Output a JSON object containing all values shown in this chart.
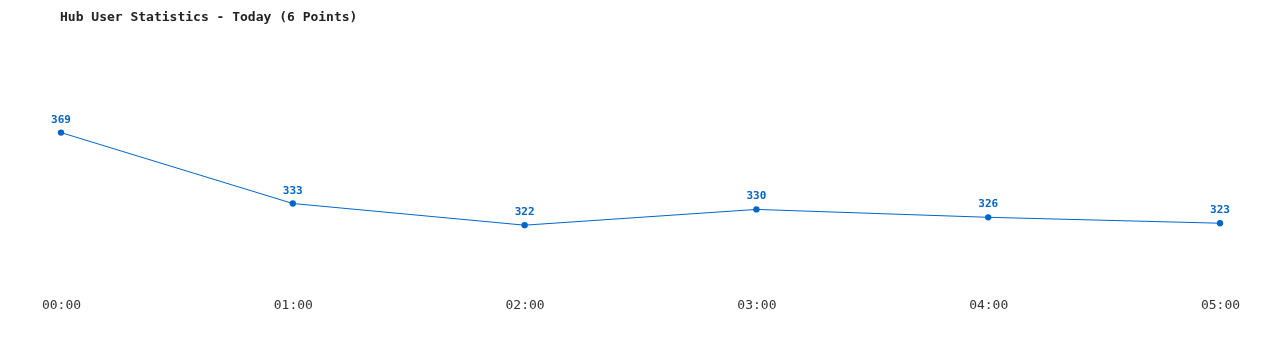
{
  "chart_data": {
    "type": "line",
    "title": "Hub User Statistics - Today (6 Points)",
    "categories": [
      "00:00",
      "01:00",
      "02:00",
      "03:00",
      "04:00",
      "05:00"
    ],
    "series": [
      {
        "color": "#0066cc",
        "values": [
          369,
          333,
          322,
          330,
          326,
          323
        ]
      }
    ],
    "data_labels": true,
    "marker": "circle",
    "grid": false,
    "legend": false
  }
}
